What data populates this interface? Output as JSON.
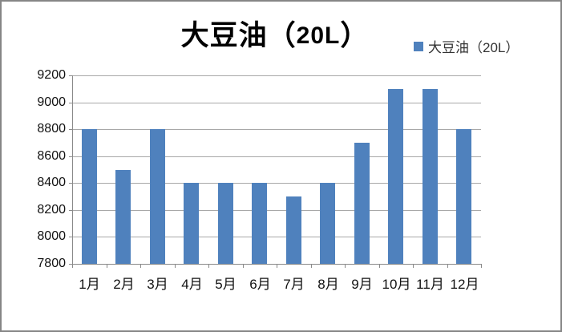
{
  "window": {
    "border_color": "#868686",
    "background": "#ffffff"
  },
  "title": {
    "prefix": "大豆油（",
    "bold": "20L",
    "suffix": "）",
    "full": "大豆油（20L）"
  },
  "legend": {
    "label": "大豆油（20L）",
    "swatch_color": "#4f81bd",
    "position": "top-right"
  },
  "chart_data": {
    "type": "bar",
    "title": "大豆油（20L）",
    "categories": [
      "1月",
      "2月",
      "3月",
      "4月",
      "5月",
      "6月",
      "7月",
      "8月",
      "9月",
      "10月",
      "11月",
      "12月"
    ],
    "series": [
      {
        "name": "大豆油（20L）",
        "values": [
          8800,
          8500,
          8800,
          8400,
          8400,
          8400,
          8300,
          8400,
          8700,
          9100,
          9100,
          8800
        ]
      }
    ],
    "xlabel": "",
    "ylabel": "",
    "ylim": [
      7800,
      9200
    ],
    "ytick_interval": 200,
    "yticks": [
      9200,
      9000,
      8800,
      8600,
      8400,
      8200,
      8000,
      7800
    ],
    "grid": true,
    "legend_position": "top-right",
    "bar_color": "#4f81bd",
    "gridline_color": "#a8a8a8",
    "axis_color": "#8a8a8a",
    "tick_label_color": "#111111"
  }
}
